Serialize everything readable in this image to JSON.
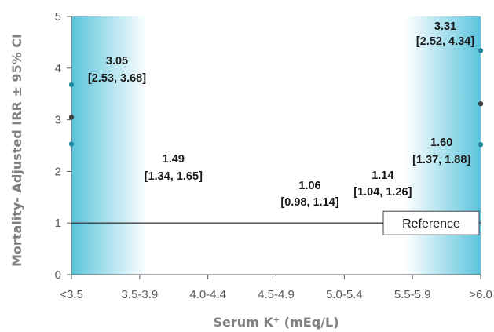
{
  "chart_data": {
    "type": "scatter",
    "title": "",
    "xlabel": "Serum K⁺ (mEq/L)",
    "ylabel": "Mortality- Adjusted IRR ± 95% CI",
    "categories": [
      "<3.5",
      "3.5-3.9",
      "4.0-4.4",
      "4.5-4.9",
      "5.0-5.4",
      "5.5-5.9",
      ">6.0"
    ],
    "ylim": [
      0,
      5
    ],
    "yticks": [
      "0",
      "1",
      "2",
      "3",
      "4",
      "5"
    ],
    "grid": false,
    "points": [
      {
        "category": "<3.5",
        "irr": 3.05,
        "lower": 2.53,
        "upper": 3.68,
        "value_label": "3.05",
        "ci_label": "[2.53, 3.68]"
      },
      {
        "category": "3.5-3.9",
        "irr": 1.49,
        "lower": 1.34,
        "upper": 1.65,
        "value_label": "1.49",
        "ci_label": "[1.34, 1.65]"
      },
      {
        "category": "4.0-4.4",
        "irr": 1.0,
        "lower": 1.0,
        "upper": 1.0,
        "value_label": "",
        "ci_label": ""
      },
      {
        "category": "4.5-4.9",
        "irr": 1.06,
        "lower": 0.98,
        "upper": 1.14,
        "value_label": "1.06",
        "ci_label": "[0.98, 1.14]"
      },
      {
        "category": "5.0-5.4",
        "irr": 1.14,
        "lower": 1.04,
        "upper": 1.26,
        "value_label": "1.14",
        "ci_label": "[1.04, 1.26]"
      },
      {
        "category": "5.5-5.9",
        "irr": 1.6,
        "lower": 1.37,
        "upper": 1.88,
        "value_label": "1.60",
        "ci_label": "[1.37, 1.88]"
      },
      {
        "category": ">6.0",
        "irr": 3.31,
        "lower": 2.52,
        "upper": 4.34,
        "value_label": "3.31",
        "ci_label": "[2.52, 4.34]"
      }
    ],
    "reference": {
      "value": 1,
      "label": "Reference"
    },
    "colors": {
      "highlight": "#5bc4dc",
      "point_mid": "#404040",
      "point_ci": "#1f8aa0",
      "axis": "#595959",
      "reference_line": "#404040"
    }
  }
}
